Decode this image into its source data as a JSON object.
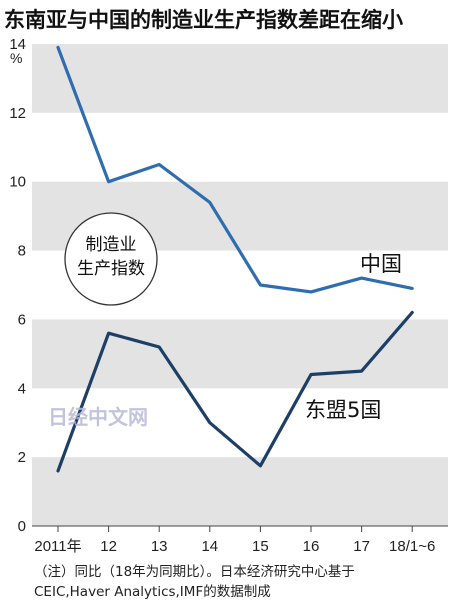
{
  "chart_data": {
    "type": "line",
    "title": "东南亚与中国的制造业生产指数差距在缩小",
    "ylabel": "%",
    "ylim": [
      0,
      14
    ],
    "yticks": [
      0,
      2,
      4,
      6,
      8,
      10,
      12,
      14
    ],
    "categories": [
      "2011年",
      "12",
      "13",
      "14",
      "15",
      "16",
      "17",
      "18/1~6"
    ],
    "grid": "alternating horizontal bands",
    "series": [
      {
        "name": "中国",
        "color": "#2f6db0",
        "values": [
          13.9,
          10.0,
          10.5,
          9.4,
          7.0,
          6.8,
          7.2,
          6.9
        ]
      },
      {
        "name": "东盟5国",
        "color": "#1d3f66",
        "values": [
          1.6,
          5.6,
          5.2,
          3.0,
          1.75,
          4.4,
          4.5,
          6.2
        ]
      }
    ],
    "badge": [
      "制造业",
      "生产指数"
    ],
    "notes": [
      "（注）同比（18年为同期比）。日本经济研究中心基于",
      "CEIC,Haver Analytics,IMF的数据制成"
    ],
    "watermark": "日经中文网"
  }
}
